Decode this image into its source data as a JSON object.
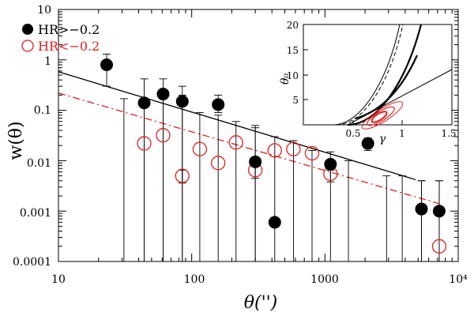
{
  "chart_data": {
    "type": "scatter",
    "xscale": "log",
    "yscale": "log",
    "xlim": [
      10,
      10000
    ],
    "ylim": [
      0.0001,
      10
    ],
    "xlabel": "θ('')",
    "ylabel": "w(θ)",
    "x_ticks": [
      "10",
      "100",
      "1000",
      "10⁴"
    ],
    "y_ticks": [
      "0.0001",
      "0.001",
      "0.01",
      "0.1",
      "1",
      "10"
    ],
    "legend": [
      {
        "label": "HR>−0.2",
        "color": "#000000",
        "marker": "filled-circle"
      },
      {
        "label": "HR<−0.2",
        "color": "#e02020",
        "marker": "open-circle"
      }
    ],
    "series": [
      {
        "name": "HR>−0.2",
        "color": "#000000",
        "x": [
          23,
          44,
          61,
          85,
          158,
          300,
          420,
          1100,
          2100,
          5300,
          7200
        ],
        "y": [
          0.8,
          0.14,
          0.21,
          0.15,
          0.13,
          0.0095,
          0.0006,
          0.0085,
          0.022,
          0.0011,
          0.001
        ],
        "err_up": [
          1.3,
          0.42,
          0.42,
          0.3,
          0.2,
          0.05,
          null,
          0.01,
          0.028,
          0.004,
          0.004
        ],
        "err_low": [
          0.3,
          0.0001,
          0.0001,
          0.0001,
          0.09,
          0.0001,
          null,
          0.0065,
          0.016,
          0.0001,
          0.0001
        ]
      },
      {
        "name": "HR<−0.2",
        "color": "#e02020",
        "x": [
          44,
          61,
          85,
          115,
          158,
          215,
          300,
          420,
          580,
          800,
          1100,
          7200
        ],
        "y": [
          0.022,
          0.032,
          0.005,
          0.017,
          0.009,
          0.023,
          0.0065,
          0.016,
          0.017,
          0.014,
          0.0055,
          0.0002
        ],
        "err_up": [
          null,
          null,
          0.0065,
          null,
          null,
          null,
          0.01,
          null,
          null,
          null,
          0.007,
          null
        ],
        "err_low": [
          null,
          null,
          0.0036,
          null,
          null,
          null,
          0.0045,
          null,
          null,
          null,
          0.0038,
          null
        ]
      },
      {
        "name": "upper-limit bars",
        "x": [
          31,
          44,
          61,
          85,
          115,
          158,
          215,
          300,
          420,
          580,
          800,
          1100,
          1500,
          2900,
          3800,
          5300,
          7200
        ],
        "top": [
          0.17,
          0.12,
          0.2,
          0.2,
          0.09,
          0.08,
          0.06,
          0.045,
          0.03,
          0.025,
          0.016,
          0.015,
          0.01,
          0.005,
          0.005,
          0.004,
          0.004
        ]
      }
    ],
    "fits": [
      {
        "name": "fit HR>−0.2",
        "style": "solid",
        "color": "#000000",
        "x": [
          10,
          4800
        ],
        "y": [
          0.58,
          0.0042
        ]
      },
      {
        "name": "fit HR<−0.2",
        "style": "dashed",
        "color": "#e02020",
        "x": [
          10,
          7200
        ],
        "y": [
          0.22,
          0.0014
        ]
      }
    ],
    "inset": {
      "xlim": [
        0,
        1.5
      ],
      "ylim": [
        0,
        20
      ],
      "xlabel": "γ",
      "ylabel": "θ₀",
      "x_ticks": [
        "0.5",
        "1",
        "1.5"
      ],
      "y_ticks": [
        "5",
        "10",
        "15",
        "20"
      ]
    }
  }
}
